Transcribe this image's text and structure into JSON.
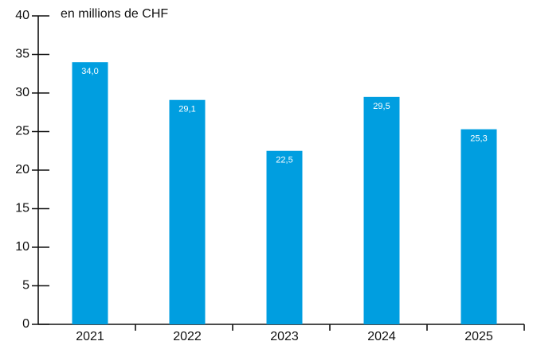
{
  "chart_data": {
    "type": "bar",
    "y_label": "en millions de CHF",
    "categories": [
      "2021",
      "2022",
      "2023",
      "2024",
      "2025"
    ],
    "values": [
      34.0,
      29.1,
      22.5,
      29.5,
      25.3
    ],
    "value_labels": [
      "34,0",
      "29,1",
      "22,5",
      "29,5",
      "25,3"
    ],
    "color": "#009ee0",
    "ylim": [
      0,
      40
    ],
    "yticks": [
      0,
      5,
      10,
      15,
      20,
      25,
      30,
      35,
      40
    ]
  }
}
